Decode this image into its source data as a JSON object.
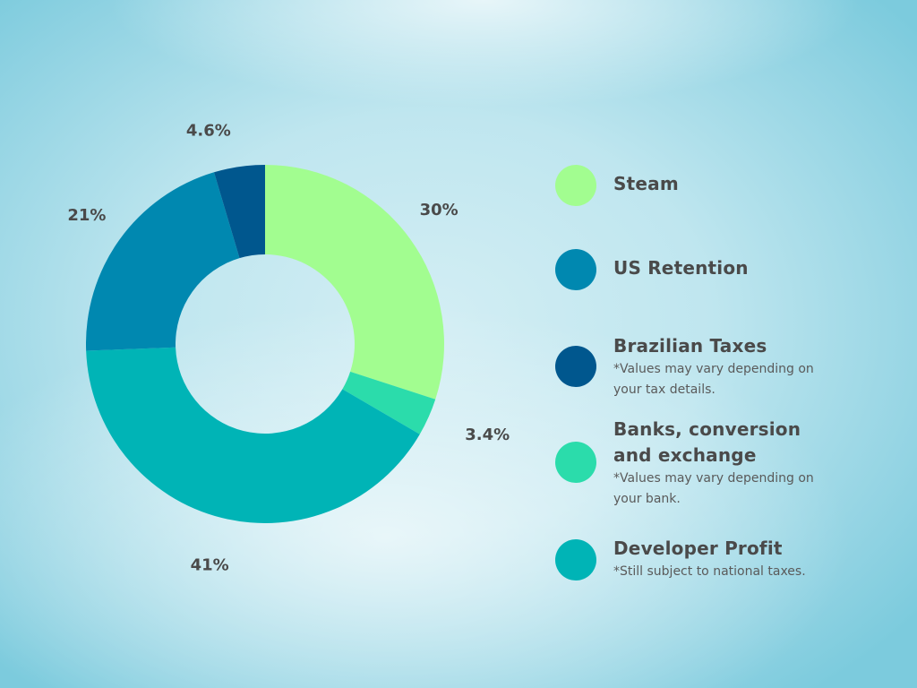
{
  "chart_data": {
    "type": "pie",
    "variant": "donut",
    "categories": [
      "Steam",
      "Banks, conversion and exchange",
      "Developer Profit",
      "US Retention",
      "Brazilian Taxes"
    ],
    "values": [
      30,
      3.4,
      41,
      21,
      4.6
    ],
    "data_labels": [
      "30%",
      "3.4%",
      "41%",
      "21%",
      "4.6%"
    ],
    "colors": [
      "#a2fd90",
      "#2bdcab",
      "#00b4b6",
      "#0088b0",
      "#00578e"
    ],
    "unit": "%",
    "start_angle": "12 o'clock",
    "direction": "clockwise",
    "legend_placement": "right"
  },
  "legend": {
    "items": [
      {
        "name": "Steam",
        "note": "",
        "color": "#a2fd90"
      },
      {
        "name": "US Retention",
        "note": "",
        "color": "#0088b0"
      },
      {
        "name": "Brazilian Taxes",
        "note": "*Values may vary depending on your tax details.",
        "color": "#00578e"
      },
      {
        "name": "Banks, conversion and exchange",
        "note": "*Values may vary depending on your bank.",
        "color": "#2bdcab"
      },
      {
        "name": "Developer Profit",
        "note": "*Still subject to national taxes.",
        "color": "#00b4b6"
      }
    ]
  }
}
